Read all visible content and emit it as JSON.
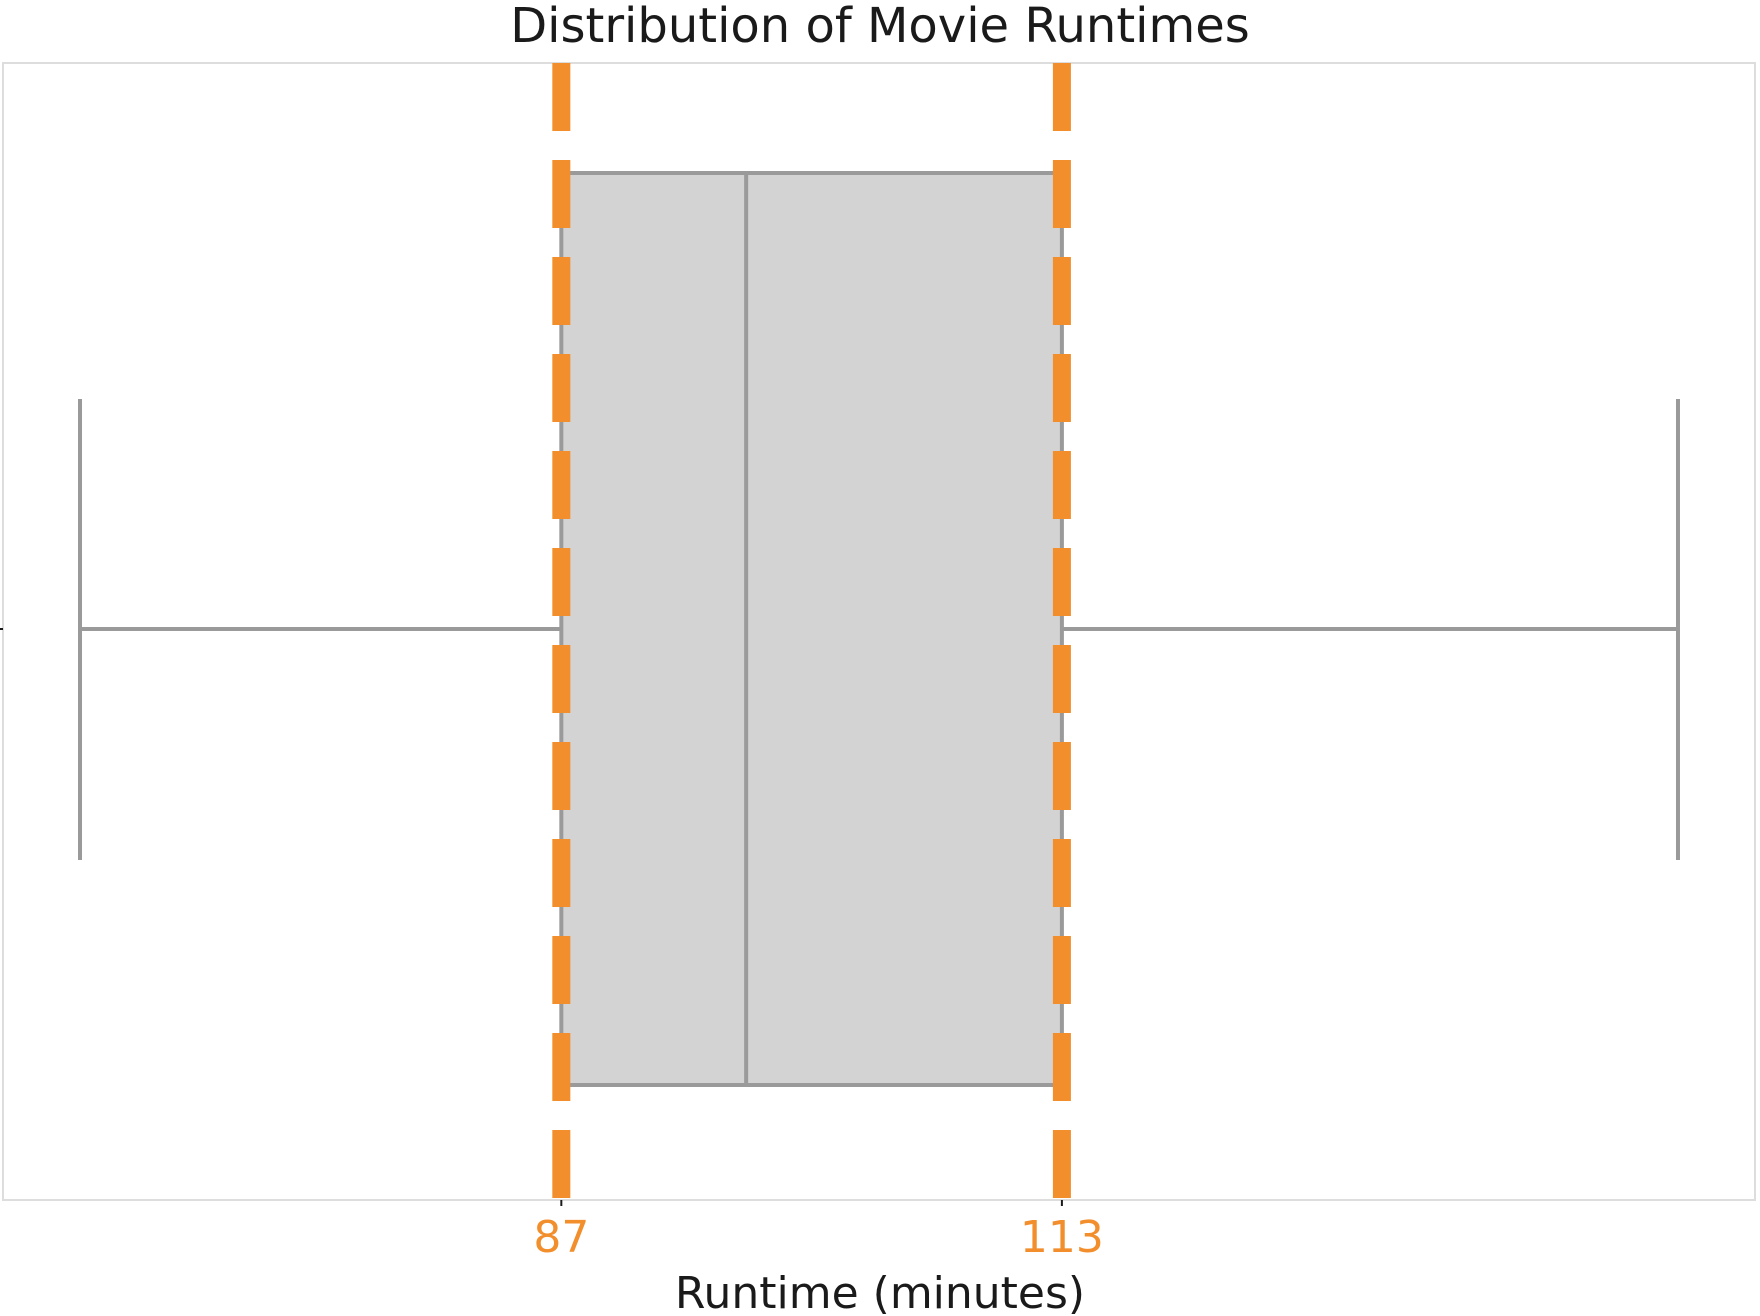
{
  "chart_data": {
    "type": "box",
    "title": "Distribution of Movie Runtimes",
    "xlabel": "Runtime (minutes)",
    "ylabel": "",
    "xlim": [
      58,
      149
    ],
    "box": {
      "whisker_low": 62,
      "q1": 87,
      "median": 96.6,
      "q3": 113,
      "whisker_high": 145
    },
    "highlight_lines": [
      87,
      113
    ],
    "x_ticks": [
      "87",
      "113"
    ],
    "grid": false,
    "legend": "none",
    "colors": {
      "box_fill": "#d3d3d3",
      "box_edge": "#9a9a9a",
      "highlight": "#f28e2b",
      "frame": "#dddddd"
    }
  }
}
